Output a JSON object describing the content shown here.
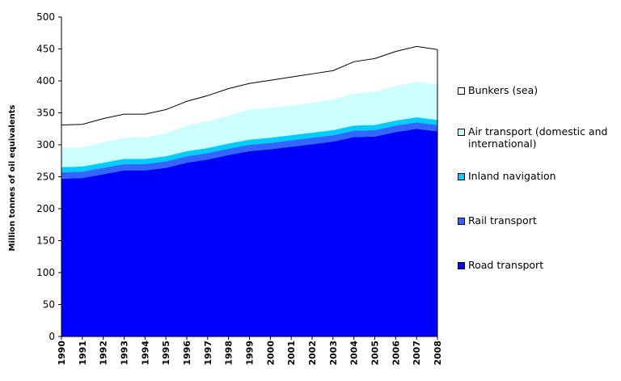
{
  "chart_data": {
    "type": "area",
    "stacked": true,
    "title": "",
    "xlabel": "",
    "ylabel": "Million tonnes of oil equivalents",
    "ylim": [
      0,
      500
    ],
    "yticks": [
      0,
      50,
      100,
      150,
      200,
      250,
      300,
      350,
      400,
      450,
      500
    ],
    "grid": false,
    "legend_position": "right",
    "x": [
      "1990",
      "1991",
      "1992",
      "1993",
      "1994",
      "1995",
      "1996",
      "1997",
      "1998",
      "1999",
      "2000",
      "2001",
      "2002",
      "2003",
      "2004",
      "2005",
      "2006",
      "2007",
      "2008"
    ],
    "series": [
      {
        "name": "Road transport",
        "color": "#0000ff",
        "values": [
          247,
          248,
          254,
          260,
          260,
          264,
          272,
          277,
          284,
          290,
          293,
          297,
          301,
          305,
          312,
          313,
          320,
          325,
          321
        ]
      },
      {
        "name": "Rail transport",
        "color": "#3366ff",
        "values": [
          10,
          10,
          10,
          10,
          10,
          10,
          10,
          10,
          10,
          10,
          10,
          10,
          10,
          10,
          10,
          10,
          10,
          10,
          10
        ]
      },
      {
        "name": "Inland navigation",
        "color": "#00ccff",
        "values": [
          8,
          8,
          8,
          8,
          8,
          8,
          8,
          8,
          8,
          8,
          8,
          8,
          8,
          8,
          8,
          8,
          8,
          8,
          8
        ]
      },
      {
        "name": "Air transport (domestic and international)",
        "color": "#ccffff",
        "values": [
          30,
          30,
          32,
          33,
          34,
          36,
          40,
          42,
          44,
          47,
          47,
          46,
          47,
          48,
          50,
          52,
          54,
          56,
          55
        ]
      },
      {
        "name": "Bunkers (sea)",
        "color": "#ffffff",
        "values": [
          36,
          36,
          37,
          37,
          36,
          37,
          38,
          40,
          42,
          41,
          43,
          45,
          45,
          45,
          50,
          52,
          54,
          55,
          55
        ]
      }
    ]
  }
}
